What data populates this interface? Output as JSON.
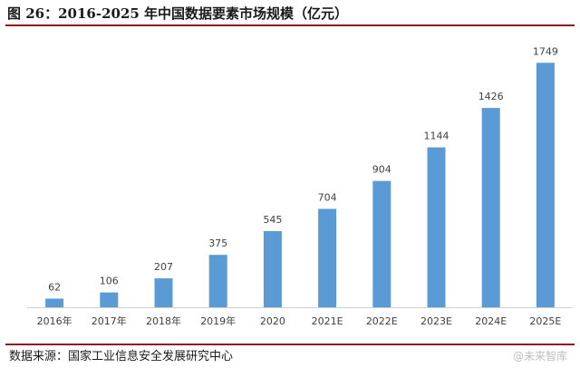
{
  "figure": {
    "title": "图 26：2016-2025 年中国数据要素市场规模（亿元）",
    "source": "数据来源：国家工业信息安全发展研究中心",
    "watermark": "@未来智库"
  },
  "chart_data": {
    "type": "bar",
    "title": "",
    "xlabel": "",
    "ylabel": "",
    "categories": [
      "2016年",
      "2017年",
      "2018年",
      "2019年",
      "2020",
      "2021E",
      "2022E",
      "2023E",
      "2024E",
      "2025E"
    ],
    "values": [
      62,
      106,
      207,
      375,
      545,
      704,
      904,
      1144,
      1426,
      1749
    ],
    "data_labels": [
      "62",
      "106",
      "207",
      "375",
      "545",
      "704",
      "904",
      "1144",
      "1426",
      "1749"
    ],
    "ylim": [
      0,
      1900
    ],
    "grid": false,
    "legend": "none",
    "bar_color": "#5b9bd5",
    "axis_color": "#d0d0d0"
  }
}
